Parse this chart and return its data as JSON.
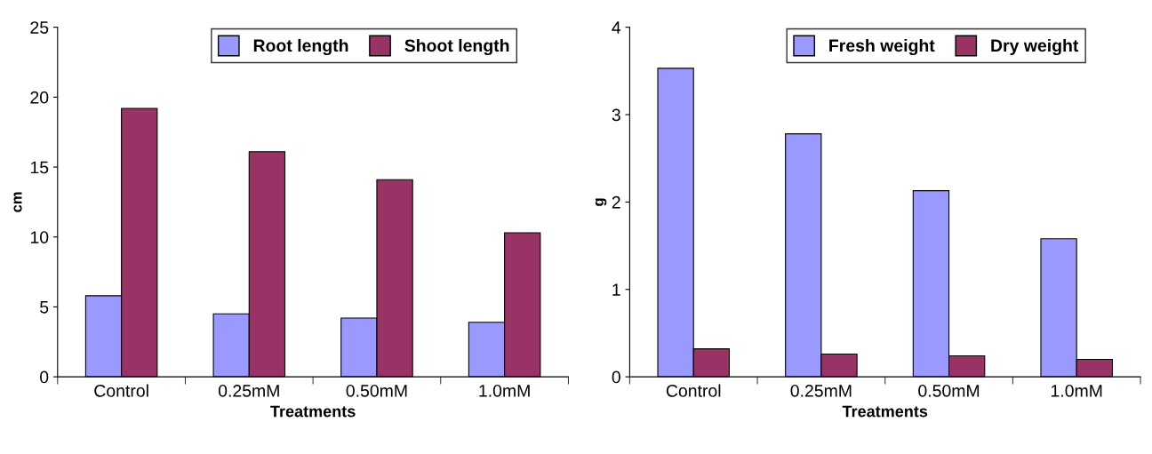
{
  "chart_data": [
    {
      "type": "bar",
      "xlabel": "Treatments",
      "ylabel": "cm",
      "categories": [
        "Control",
        "0.25mM",
        "0.50mM",
        "1.0mM"
      ],
      "series": [
        {
          "name": "Root length",
          "color": "#9999ff",
          "values": [
            5.8,
            4.5,
            4.2,
            3.9
          ]
        },
        {
          "name": "Shoot length",
          "color": "#993366",
          "values": [
            19.2,
            16.1,
            14.1,
            10.3
          ]
        }
      ],
      "ylim": [
        0,
        25
      ],
      "yticks": [
        0,
        5,
        10,
        15,
        20,
        25
      ],
      "grid": false,
      "legend": "top"
    },
    {
      "type": "bar",
      "xlabel": "Treatments",
      "ylabel": "g",
      "categories": [
        "Control",
        "0.25mM",
        "0.50mM",
        "1.0mM"
      ],
      "series": [
        {
          "name": "Fresh weight",
          "color": "#9999ff",
          "values": [
            3.53,
            2.78,
            2.13,
            1.58
          ]
        },
        {
          "name": "Dry weight",
          "color": "#993366",
          "values": [
            0.32,
            0.26,
            0.24,
            0.2
          ]
        }
      ],
      "ylim": [
        0,
        4
      ],
      "yticks": [
        0,
        1,
        2,
        3,
        4
      ],
      "grid": false,
      "legend": "top"
    }
  ]
}
